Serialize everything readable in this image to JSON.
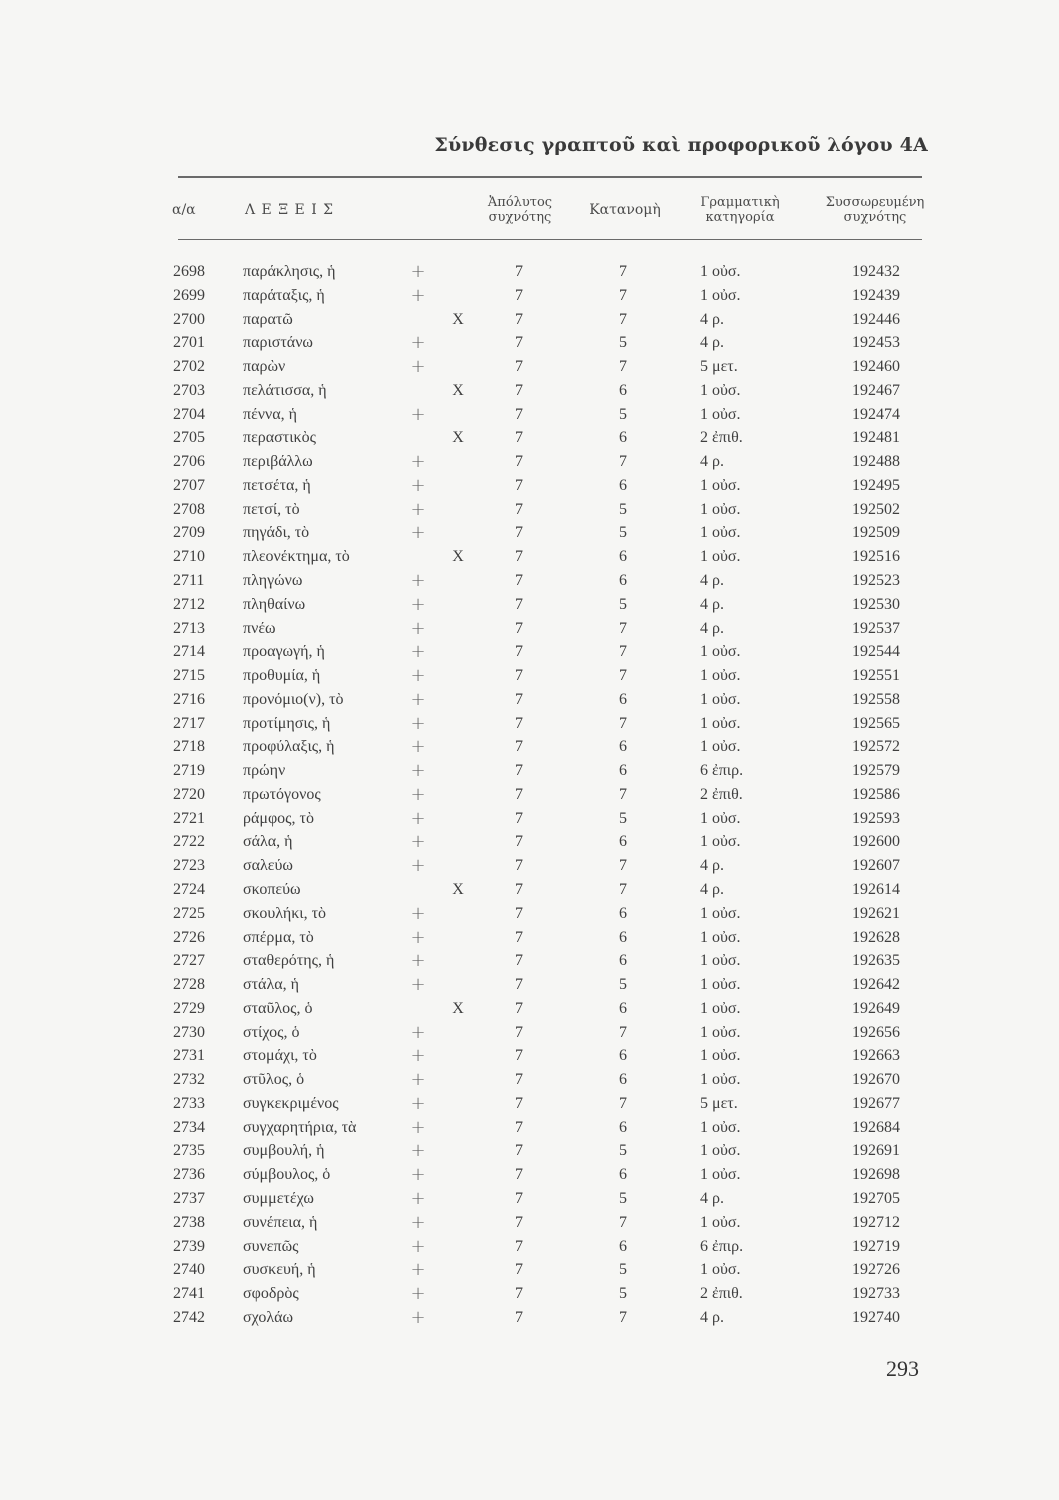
{
  "header": {
    "title": "Σύνθεσις γραπτοῦ καὶ προφορικοῦ λόγου 4Α",
    "columns": {
      "aa": "α/α",
      "words": "Λ Ε Ξ Ε Ι Σ",
      "abs_freq_1": "Ἀπόλυτος",
      "abs_freq_2": "συχνότης",
      "distribution": "Κατανομὴ",
      "gram_1": "Γραμματικὴ",
      "gram_2": "κατηγορία",
      "cum_1": "Συσσωρευμένη",
      "cum_2": "συχνότης"
    }
  },
  "rows": [
    {
      "n": "2698",
      "word": "παράκλησις, ἡ",
      "mark": "+",
      "abs": "7",
      "kat": "7",
      "gram": "1 οὐσ.",
      "cum": "192432"
    },
    {
      "n": "2699",
      "word": "παράταξις, ἡ",
      "mark": "+",
      "abs": "7",
      "kat": "7",
      "gram": "1 οὐσ.",
      "cum": "192439"
    },
    {
      "n": "2700",
      "word": "παρατῶ",
      "mark": "X",
      "abs": "7",
      "kat": "7",
      "gram": "4 ρ.",
      "cum": "192446"
    },
    {
      "n": "2701",
      "word": "παριστάνω",
      "mark": "+",
      "abs": "7",
      "kat": "5",
      "gram": "4 ρ.",
      "cum": "192453"
    },
    {
      "n": "2702",
      "word": "παρὼν",
      "mark": "+",
      "abs": "7",
      "kat": "7",
      "gram": "5 μετ.",
      "cum": "192460"
    },
    {
      "n": "2703",
      "word": "πελάτισσα, ἡ",
      "mark": "X",
      "abs": "7",
      "kat": "6",
      "gram": "1 οὐσ.",
      "cum": "192467"
    },
    {
      "n": "2704",
      "word": "πέννα, ἡ",
      "mark": "+",
      "abs": "7",
      "kat": "5",
      "gram": "1 οὐσ.",
      "cum": "192474"
    },
    {
      "n": "2705",
      "word": "περαστικὸς",
      "mark": "X",
      "abs": "7",
      "kat": "6",
      "gram": "2 ἐπιθ.",
      "cum": "192481"
    },
    {
      "n": "2706",
      "word": "περιβάλλω",
      "mark": "+",
      "abs": "7",
      "kat": "7",
      "gram": "4 ρ.",
      "cum": "192488"
    },
    {
      "n": "2707",
      "word": "πετσέτα, ἡ",
      "mark": "+",
      "abs": "7",
      "kat": "6",
      "gram": "1 οὐσ.",
      "cum": "192495"
    },
    {
      "n": "2708",
      "word": "πετσί, τὸ",
      "mark": "+",
      "abs": "7",
      "kat": "5",
      "gram": "1 οὐσ.",
      "cum": "192502"
    },
    {
      "n": "2709",
      "word": "πηγάδι, τὸ",
      "mark": "+",
      "abs": "7",
      "kat": "5",
      "gram": "1 οὐσ.",
      "cum": "192509"
    },
    {
      "n": "2710",
      "word": "πλεονέκτημα, τὸ",
      "mark": "X",
      "abs": "7",
      "kat": "6",
      "gram": "1 οὐσ.",
      "cum": "192516"
    },
    {
      "n": "2711",
      "word": "πληγώνω",
      "mark": "+",
      "abs": "7",
      "kat": "6",
      "gram": "4 ρ.",
      "cum": "192523"
    },
    {
      "n": "2712",
      "word": "πληθαίνω",
      "mark": "+",
      "abs": "7",
      "kat": "5",
      "gram": "4 ρ.",
      "cum": "192530"
    },
    {
      "n": "2713",
      "word": "πνέω",
      "mark": "+",
      "abs": "7",
      "kat": "7",
      "gram": "4 ρ.",
      "cum": "192537"
    },
    {
      "n": "2714",
      "word": "προαγωγή, ἡ",
      "mark": "+",
      "abs": "7",
      "kat": "7",
      "gram": "1 οὐσ.",
      "cum": "192544"
    },
    {
      "n": "2715",
      "word": "προθυμία, ἡ",
      "mark": "+",
      "abs": "7",
      "kat": "7",
      "gram": "1 οὐσ.",
      "cum": "192551"
    },
    {
      "n": "2716",
      "word": "προνόμιο(ν), τὸ",
      "mark": "+",
      "abs": "7",
      "kat": "6",
      "gram": "1 οὐσ.",
      "cum": "192558"
    },
    {
      "n": "2717",
      "word": "προτίμησις, ἡ",
      "mark": "+",
      "abs": "7",
      "kat": "7",
      "gram": "1 οὐσ.",
      "cum": "192565"
    },
    {
      "n": "2718",
      "word": "προφύλαξις, ἡ",
      "mark": "+",
      "abs": "7",
      "kat": "6",
      "gram": "1 οὐσ.",
      "cum": "192572"
    },
    {
      "n": "2719",
      "word": "πρώην",
      "mark": "+",
      "abs": "7",
      "kat": "6",
      "gram": "6 ἐπιρ.",
      "cum": "192579"
    },
    {
      "n": "2720",
      "word": "πρωτόγονος",
      "mark": "+",
      "abs": "7",
      "kat": "7",
      "gram": "2 ἐπιθ.",
      "cum": "192586"
    },
    {
      "n": "2721",
      "word": "ράμφος, τὸ",
      "mark": "+",
      "abs": "7",
      "kat": "5",
      "gram": "1 οὐσ.",
      "cum": "192593"
    },
    {
      "n": "2722",
      "word": "σάλα, ἡ",
      "mark": "+",
      "abs": "7",
      "kat": "6",
      "gram": "1 οὐσ.",
      "cum": "192600"
    },
    {
      "n": "2723",
      "word": "σαλεύω",
      "mark": "+",
      "abs": "7",
      "kat": "7",
      "gram": "4 ρ.",
      "cum": "192607"
    },
    {
      "n": "2724",
      "word": "σκοπεύω",
      "mark": "X",
      "abs": "7",
      "kat": "7",
      "gram": "4 ρ.",
      "cum": "192614"
    },
    {
      "n": "2725",
      "word": "σκουλήκι, τὸ",
      "mark": "+",
      "abs": "7",
      "kat": "6",
      "gram": "1 οὐσ.",
      "cum": "192621"
    },
    {
      "n": "2726",
      "word": "σπέρμα, τὸ",
      "mark": "+",
      "abs": "7",
      "kat": "6",
      "gram": "1 οὐσ.",
      "cum": "192628"
    },
    {
      "n": "2727",
      "word": "σταθερότης, ἡ",
      "mark": "+",
      "abs": "7",
      "kat": "6",
      "gram": "1 οὐσ.",
      "cum": "192635"
    },
    {
      "n": "2728",
      "word": "στάλα, ἡ",
      "mark": "+",
      "abs": "7",
      "kat": "5",
      "gram": "1 οὐσ.",
      "cum": "192642"
    },
    {
      "n": "2729",
      "word": "σταῦλος, ὁ",
      "mark": "X",
      "abs": "7",
      "kat": "6",
      "gram": "1 οὐσ.",
      "cum": "192649"
    },
    {
      "n": "2730",
      "word": "στίχος, ὁ",
      "mark": "+",
      "abs": "7",
      "kat": "7",
      "gram": "1 οὐσ.",
      "cum": "192656"
    },
    {
      "n": "2731",
      "word": "στομάχι, τὸ",
      "mark": "+",
      "abs": "7",
      "kat": "6",
      "gram": "1 οὐσ.",
      "cum": "192663"
    },
    {
      "n": "2732",
      "word": "στῦλος, ὁ",
      "mark": "+",
      "abs": "7",
      "kat": "6",
      "gram": "1 οὐσ.",
      "cum": "192670"
    },
    {
      "n": "2733",
      "word": "συγκεκριμένος",
      "mark": "+",
      "abs": "7",
      "kat": "7",
      "gram": "5 μετ.",
      "cum": "192677"
    },
    {
      "n": "2734",
      "word": "συγχαρητήρια, τὰ",
      "mark": "+",
      "abs": "7",
      "kat": "6",
      "gram": "1 οὐσ.",
      "cum": "192684"
    },
    {
      "n": "2735",
      "word": "συμβουλή, ἡ",
      "mark": "+",
      "abs": "7",
      "kat": "5",
      "gram": "1 οὐσ.",
      "cum": "192691"
    },
    {
      "n": "2736",
      "word": "σύμβουλος, ὁ",
      "mark": "+",
      "abs": "7",
      "kat": "6",
      "gram": "1 οὐσ.",
      "cum": "192698"
    },
    {
      "n": "2737",
      "word": "συμμετέχω",
      "mark": "+",
      "abs": "7",
      "kat": "5",
      "gram": "4 ρ.",
      "cum": "192705"
    },
    {
      "n": "2738",
      "word": "συνέπεια, ἡ",
      "mark": "+",
      "abs": "7",
      "kat": "7",
      "gram": "1 οὐσ.",
      "cum": "192712"
    },
    {
      "n": "2739",
      "word": "συνεπῶς",
      "mark": "+",
      "abs": "7",
      "kat": "6",
      "gram": "6 ἐπιρ.",
      "cum": "192719"
    },
    {
      "n": "2740",
      "word": "συσκευή, ἡ",
      "mark": "+",
      "abs": "7",
      "kat": "5",
      "gram": "1 οὐσ.",
      "cum": "192726"
    },
    {
      "n": "2741",
      "word": "σφοδρὸς",
      "mark": "+",
      "abs": "7",
      "kat": "5",
      "gram": "2 ἐπιθ.",
      "cum": "192733"
    },
    {
      "n": "2742",
      "word": "σχολάω",
      "mark": "+",
      "abs": "7",
      "kat": "7",
      "gram": "4 ρ.",
      "cum": "192740"
    }
  ],
  "footer": {
    "page_number": "293"
  }
}
